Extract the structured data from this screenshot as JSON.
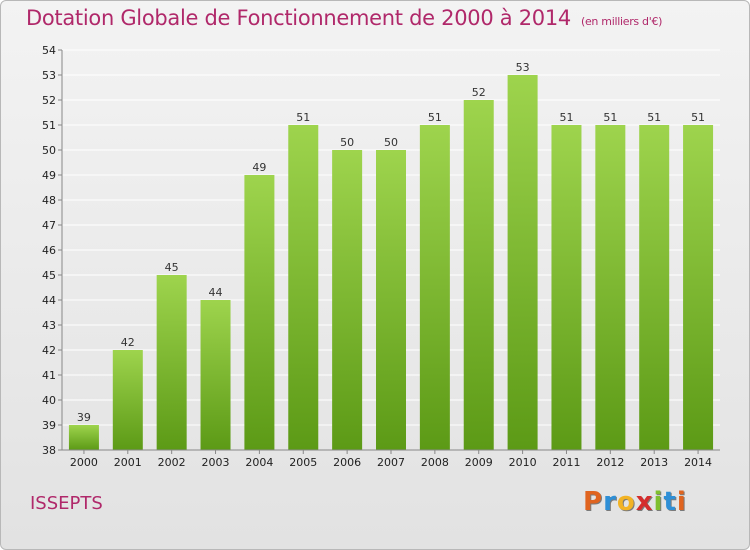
{
  "header": {
    "title": "Dotation Globale de Fonctionnement de 2000 à 2014",
    "unit": "(en milliers d'€)"
  },
  "commune": "ISSEPTS",
  "logo": {
    "text": "Proxiti",
    "letters": [
      {
        "ch": "P",
        "color": "#e0641f"
      },
      {
        "ch": "r",
        "color": "#2e8fd6"
      },
      {
        "ch": "o",
        "color": "#f2b325"
      },
      {
        "ch": "x",
        "color": "#d42d2d"
      },
      {
        "ch": "i",
        "color": "#7fbf2e"
      },
      {
        "ch": "t",
        "color": "#2e8fd6"
      },
      {
        "ch": "i",
        "color": "#e0641f"
      }
    ]
  },
  "chart_data": {
    "type": "bar",
    "title": "Dotation Globale de Fonctionnement de 2000 à 2014",
    "subtitle": "(en milliers d'€)",
    "categories": [
      "2000",
      "2001",
      "2002",
      "2003",
      "2004",
      "2005",
      "2006",
      "2007",
      "2008",
      "2009",
      "2010",
      "2011",
      "2012",
      "2013",
      "2014"
    ],
    "values": [
      39,
      42,
      45,
      44,
      49,
      51,
      50,
      50,
      51,
      52,
      53,
      51,
      51,
      51,
      51
    ],
    "ylim": [
      38,
      54
    ],
    "yticks": [
      38,
      39,
      40,
      41,
      42,
      43,
      44,
      45,
      46,
      47,
      48,
      49,
      50,
      51,
      52,
      53,
      54
    ],
    "grid": true,
    "colors": {
      "bar_top": "#9ed44d",
      "bar_bottom": "#5c9a16",
      "grid": "#ffffff",
      "axis": "#888888"
    }
  }
}
